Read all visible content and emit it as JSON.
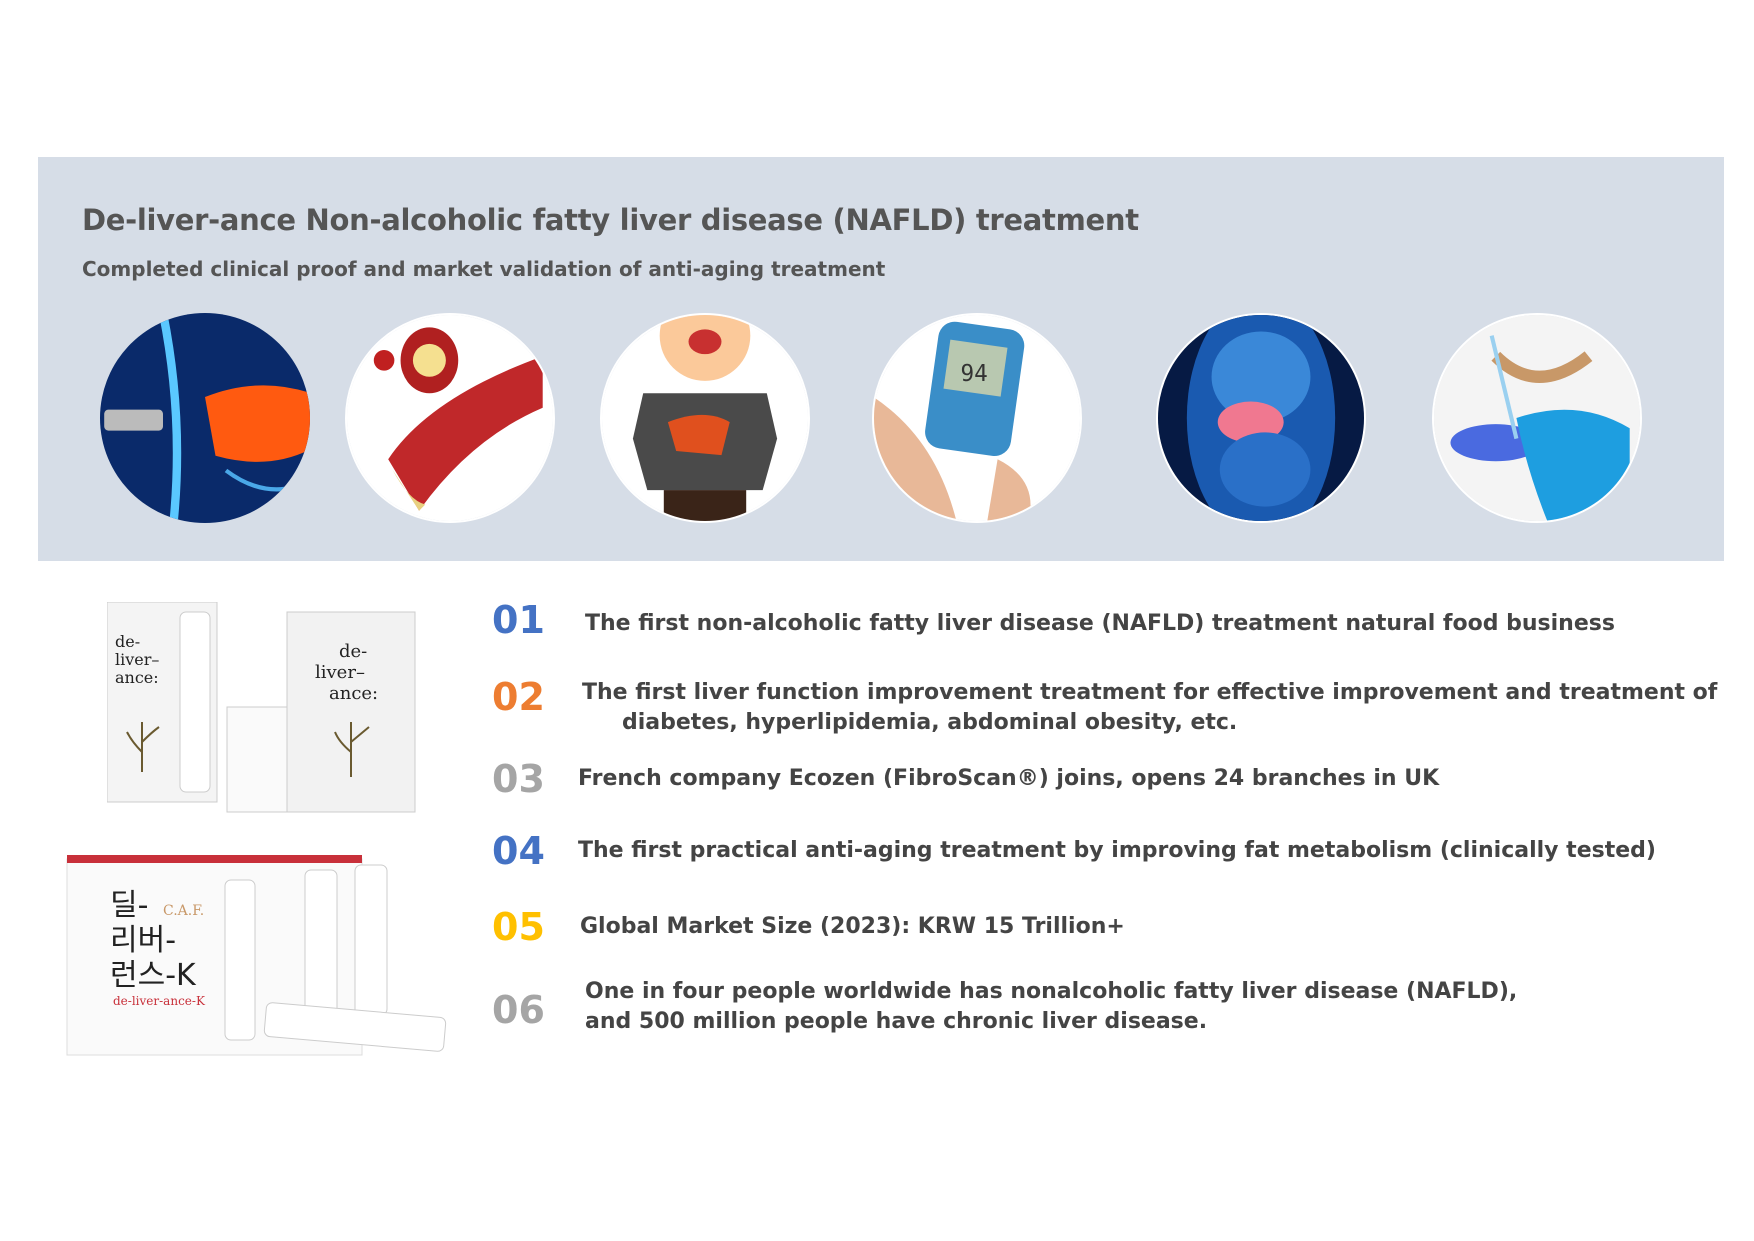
{
  "header": {
    "title": "De-liver-ance Non-alcoholic fatty liver disease (NAFLD) treatment",
    "subtitle": "Completed clinical proof and market validation of anti-aging treatment"
  },
  "images": [
    {
      "icon": "fibroscan-liver-icon"
    },
    {
      "icon": "clogged-artery-icon"
    },
    {
      "icon": "obese-person-liver-icon"
    },
    {
      "icon": "glucose-meter-icon",
      "reading": "94"
    },
    {
      "icon": "anatomy-liver-icon"
    },
    {
      "icon": "lab-petri-dish-icon"
    }
  ],
  "products": {
    "brand_en": "de-liver-ance:",
    "brand_ko": "딜-리버-런스-K",
    "brand_k": "de-liver-ance-K",
    "caf": "C.A.F."
  },
  "points": [
    {
      "num": "01",
      "color": "#4472c4",
      "lines": [
        "The first non-alcoholic fatty liver disease (NAFLD) treatment natural food business"
      ]
    },
    {
      "num": "02",
      "color": "#ed7d31",
      "lines": [
        "The first liver function improvement treatment for effective improvement and treatment of",
        "diabetes, hyperlipidemia, abdominal obesity, etc."
      ]
    },
    {
      "num": "03",
      "color": "#a5a5a5",
      "lines": [
        "French company Ecozen (FibroScan®) joins, opens 24 branches in UK"
      ]
    },
    {
      "num": "04",
      "color": "#4472c4",
      "lines": [
        "The first practical anti-aging treatment by improving fat metabolism (clinically tested)"
      ]
    },
    {
      "num": "05",
      "color": "#ffc000",
      "lines": [
        "Global Market Size (2023): KRW 15 Trillion+"
      ]
    },
    {
      "num": "06",
      "color": "#a5a5a5",
      "lines": [
        "One in four people worldwide has nonalcoholic fatty liver disease (NAFLD),",
        "and 500 million people have chronic liver disease."
      ]
    }
  ]
}
